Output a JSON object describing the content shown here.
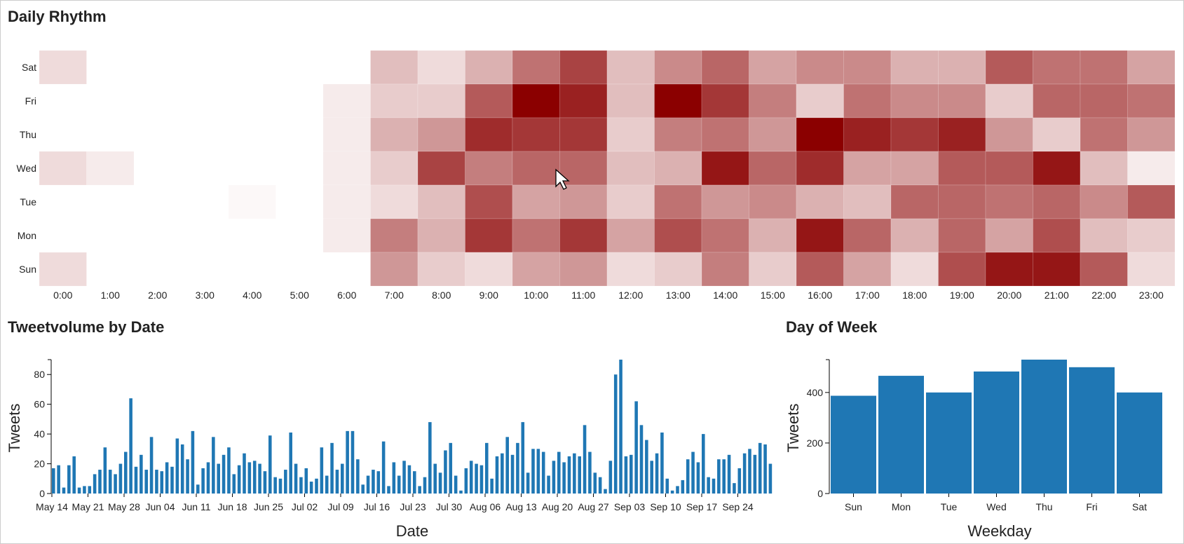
{
  "panels": {
    "heatmap_title": "Daily Rhythm",
    "date_title": "Tweetvolume by Date",
    "week_title": "Day of Week"
  },
  "colors": {
    "heat_low": "#ffffff",
    "heat_high": "#8b0000",
    "bar": "#1f77b4"
  },
  "chart_data": [
    {
      "type": "heatmap",
      "title": "Daily Rhythm",
      "y_categories": [
        "Sat",
        "Fri",
        "Thu",
        "Wed",
        "Tue",
        "Mon",
        "Sun"
      ],
      "x_categories": [
        "0:00",
        "1:00",
        "2:00",
        "3:00",
        "4:00",
        "5:00",
        "6:00",
        "7:00",
        "8:00",
        "9:00",
        "10:00",
        "11:00",
        "12:00",
        "13:00",
        "14:00",
        "15:00",
        "16:00",
        "17:00",
        "18:00",
        "19:00",
        "20:00",
        "21:00",
        "22:00",
        "23:00"
      ],
      "values": [
        [
          2,
          0,
          0,
          0,
          0,
          0,
          0,
          4,
          2,
          5,
          10,
          14,
          4,
          8,
          11,
          6,
          8,
          8,
          5,
          5,
          12,
          10,
          10,
          6
        ],
        [
          0,
          0,
          0,
          0,
          0,
          0,
          1,
          3,
          3,
          12,
          20,
          17,
          4,
          20,
          15,
          9,
          3,
          10,
          8,
          8,
          3,
          11,
          11,
          10
        ],
        [
          0,
          0,
          0,
          0,
          0,
          0,
          1,
          5,
          7,
          16,
          15,
          15,
          3,
          9,
          10,
          7,
          20,
          17,
          15,
          17,
          7,
          3,
          10,
          7
        ],
        [
          2,
          1,
          0,
          0,
          0,
          0,
          1,
          3,
          14,
          9,
          11,
          11,
          4,
          5,
          18,
          11,
          16,
          6,
          6,
          12,
          12,
          18,
          4,
          1
        ],
        [
          0,
          0,
          0,
          0,
          0.3,
          0,
          1,
          2,
          4,
          13,
          6,
          7,
          3,
          10,
          7,
          8,
          5,
          4,
          11,
          11,
          10,
          11,
          8,
          12
        ],
        [
          0,
          0,
          0,
          0,
          0,
          0,
          1,
          9,
          5,
          15,
          10,
          15,
          6,
          13,
          10,
          5,
          18,
          11,
          5,
          11,
          6,
          13,
          4,
          3
        ],
        [
          2,
          0,
          0,
          0,
          0,
          0,
          0,
          7,
          3,
          2,
          6,
          7,
          2,
          3,
          9,
          3,
          12,
          6,
          2,
          13,
          18,
          18,
          12,
          2
        ]
      ]
    },
    {
      "type": "bar",
      "title": "Tweetvolume by Date",
      "xlabel": "Date",
      "ylabel": "Tweets",
      "ylim": [
        0,
        90
      ],
      "y_ticks": [
        0,
        20,
        40,
        60,
        80
      ],
      "x_tick_labels": [
        "May 14",
        "May 21",
        "May 28",
        "Jun 04",
        "Jun 11",
        "Jun 18",
        "Jun 25",
        "Jul 02",
        "Jul 09",
        "Jul 16",
        "Jul 23",
        "Jul 30",
        "Aug 06",
        "Aug 13",
        "Aug 20",
        "Aug 27",
        "Sep 03",
        "Sep 10",
        "Sep 17",
        "Sep 24"
      ],
      "values": [
        17,
        19,
        4,
        19,
        25,
        4,
        5,
        5,
        13,
        16,
        31,
        16,
        13,
        20,
        28,
        64,
        18,
        26,
        16,
        38,
        16,
        15,
        21,
        18,
        37,
        33,
        23,
        42,
        6,
        17,
        21,
        38,
        20,
        26,
        31,
        13,
        19,
        27,
        21,
        22,
        20,
        15,
        39,
        11,
        10,
        16,
        41,
        20,
        11,
        17,
        8,
        10,
        31,
        12,
        34,
        16,
        20,
        42,
        42,
        23,
        6,
        12,
        16,
        15,
        35,
        5,
        21,
        12,
        22,
        19,
        15,
        5,
        11,
        48,
        20,
        14,
        29,
        34,
        12,
        2,
        17,
        22,
        20,
        19,
        34,
        10,
        25,
        27,
        38,
        26,
        34,
        48,
        14,
        30,
        30,
        28,
        12,
        22,
        28,
        21,
        25,
        27,
        25,
        46,
        28,
        14,
        11,
        3,
        22,
        80,
        90,
        25,
        26,
        62,
        46,
        36,
        22,
        27,
        41,
        10,
        2,
        5,
        9,
        23,
        28,
        21,
        40,
        11,
        10,
        23,
        23,
        26,
        7,
        17,
        27,
        30,
        26,
        34,
        33,
        20
      ]
    },
    {
      "type": "bar",
      "title": "Day of Week",
      "xlabel": "Weekday",
      "ylabel": "Tweets",
      "ylim": [
        0,
        530
      ],
      "y_ticks": [
        0,
        200,
        400
      ],
      "categories": [
        "Sun",
        "Mon",
        "Tue",
        "Wed",
        "Thu",
        "Fri",
        "Sat"
      ],
      "values": [
        387,
        466,
        400,
        483,
        530,
        500,
        400
      ]
    }
  ]
}
